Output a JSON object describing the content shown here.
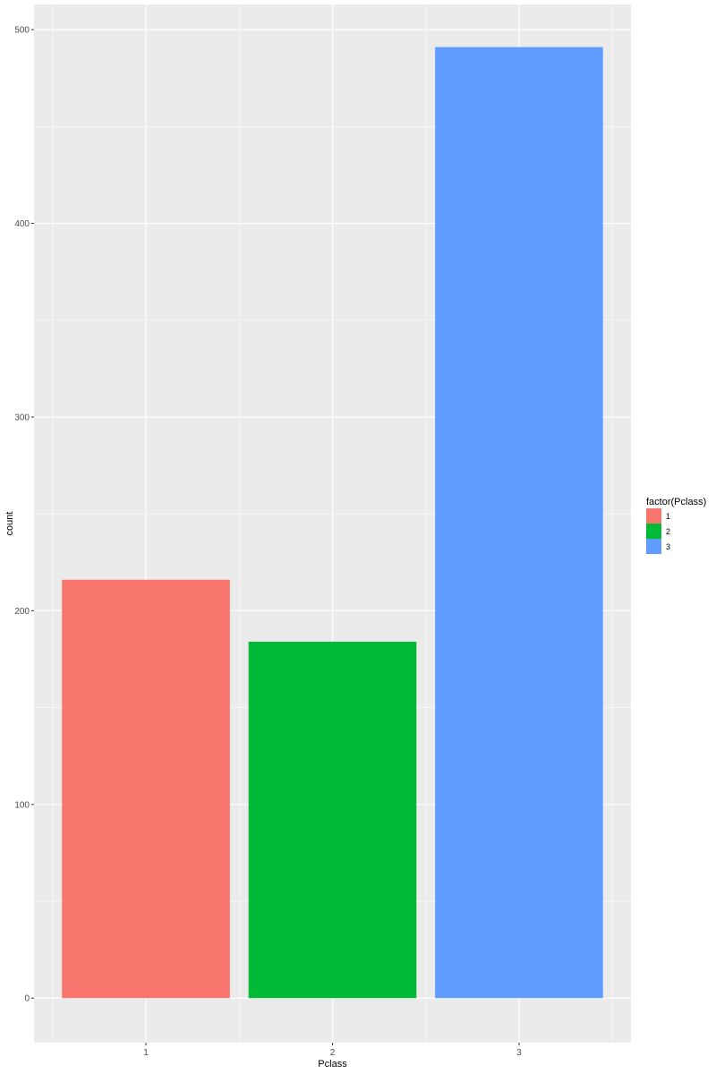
{
  "chart_data": {
    "type": "bar",
    "categories": [
      "1",
      "2",
      "3"
    ],
    "values": [
      216,
      184,
      491
    ],
    "xlabel": "Pclass",
    "ylabel": "count",
    "ylim": [
      -23,
      513
    ],
    "yticks": [
      0,
      100,
      200,
      300,
      400,
      500
    ],
    "grid": true,
    "legend": {
      "title": "factor(Pclass)",
      "position": "right",
      "entries": [
        "1",
        "2",
        "3"
      ]
    },
    "colors": [
      "#F8766D",
      "#00BA38",
      "#619CFF"
    ],
    "panel_background": "#EBEBEB",
    "grid_color": "#FFFFFF"
  }
}
